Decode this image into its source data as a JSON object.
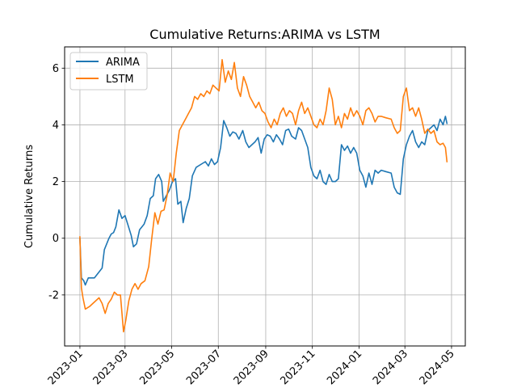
{
  "chart_data": {
    "type": "line",
    "title": "Cumulative Returns:ARIMA vs LSTM",
    "xlabel": "",
    "ylabel": "Cumulative Returns",
    "x_type": "date",
    "xlim": [
      "2022-12-12",
      "2024-05-19"
    ],
    "ylim": [
      -3.8,
      6.75
    ],
    "x_ticks": [
      "2023-01",
      "2023-03",
      "2023-05",
      "2023-07",
      "2023-09",
      "2023-11",
      "2024-01",
      "2024-03",
      "2024-05"
    ],
    "y_ticks": [
      -2,
      0,
      2,
      4,
      6
    ],
    "grid": true,
    "legend_position": "upper-left",
    "series": [
      {
        "name": "ARIMA",
        "color": "#1f77b4",
        "points": [
          [
            "2023-01-01",
            0.0
          ],
          [
            "2023-01-03",
            -1.4
          ],
          [
            "2023-01-06",
            -1.5
          ],
          [
            "2023-01-08",
            -1.65
          ],
          [
            "2023-01-12",
            -1.4
          ],
          [
            "2023-01-20",
            -1.4
          ],
          [
            "2023-01-30",
            -1.05
          ],
          [
            "2023-02-02",
            -0.4
          ],
          [
            "2023-02-08",
            0.0
          ],
          [
            "2023-02-11",
            0.15
          ],
          [
            "2023-02-14",
            0.2
          ],
          [
            "2023-02-17",
            0.4
          ],
          [
            "2023-02-21",
            1.0
          ],
          [
            "2023-02-25",
            0.7
          ],
          [
            "2023-03-01",
            0.8
          ],
          [
            "2023-03-05",
            0.45
          ],
          [
            "2023-03-09",
            0.1
          ],
          [
            "2023-03-12",
            -0.3
          ],
          [
            "2023-03-16",
            -0.2
          ],
          [
            "2023-03-20",
            0.3
          ],
          [
            "2023-03-26",
            0.5
          ],
          [
            "2023-03-30",
            0.8
          ],
          [
            "2023-04-03",
            1.4
          ],
          [
            "2023-04-07",
            1.5
          ],
          [
            "2023-04-10",
            2.1
          ],
          [
            "2023-04-14",
            2.25
          ],
          [
            "2023-04-18",
            2.0
          ],
          [
            "2023-04-20",
            1.3
          ],
          [
            "2023-04-24",
            1.5
          ],
          [
            "2023-04-28",
            1.7
          ],
          [
            "2023-05-02",
            2.0
          ],
          [
            "2023-05-06",
            2.1
          ],
          [
            "2023-05-09",
            1.2
          ],
          [
            "2023-05-13",
            1.3
          ],
          [
            "2023-05-16",
            0.55
          ],
          [
            "2023-05-20",
            1.05
          ],
          [
            "2023-05-24",
            1.4
          ],
          [
            "2023-05-28",
            2.2
          ],
          [
            "2023-06-02",
            2.5
          ],
          [
            "2023-06-08",
            2.6
          ],
          [
            "2023-06-14",
            2.7
          ],
          [
            "2023-06-18",
            2.55
          ],
          [
            "2023-06-22",
            2.8
          ],
          [
            "2023-06-26",
            2.6
          ],
          [
            "2023-06-30",
            2.7
          ],
          [
            "2023-07-04",
            3.2
          ],
          [
            "2023-07-08",
            4.15
          ],
          [
            "2023-07-12",
            3.9
          ],
          [
            "2023-07-16",
            3.6
          ],
          [
            "2023-07-20",
            3.75
          ],
          [
            "2023-07-24",
            3.7
          ],
          [
            "2023-07-28",
            3.5
          ],
          [
            "2023-08-02",
            3.8
          ],
          [
            "2023-08-06",
            3.4
          ],
          [
            "2023-08-10",
            3.2
          ],
          [
            "2023-08-14",
            3.3
          ],
          [
            "2023-08-18",
            3.4
          ],
          [
            "2023-08-22",
            3.55
          ],
          [
            "2023-08-26",
            3.0
          ],
          [
            "2023-08-30",
            3.5
          ],
          [
            "2023-09-03",
            3.65
          ],
          [
            "2023-09-07",
            3.6
          ],
          [
            "2023-09-11",
            3.4
          ],
          [
            "2023-09-15",
            3.65
          ],
          [
            "2023-09-19",
            3.5
          ],
          [
            "2023-09-23",
            3.3
          ],
          [
            "2023-09-27",
            3.8
          ],
          [
            "2023-10-01",
            3.85
          ],
          [
            "2023-10-05",
            3.6
          ],
          [
            "2023-10-10",
            3.5
          ],
          [
            "2023-10-14",
            3.9
          ],
          [
            "2023-10-18",
            3.8
          ],
          [
            "2023-10-22",
            3.5
          ],
          [
            "2023-10-26",
            3.2
          ],
          [
            "2023-10-30",
            2.5
          ],
          [
            "2023-11-03",
            2.2
          ],
          [
            "2023-11-07",
            2.1
          ],
          [
            "2023-11-11",
            2.4
          ],
          [
            "2023-11-15",
            2.0
          ],
          [
            "2023-11-19",
            1.9
          ],
          [
            "2023-11-23",
            2.25
          ],
          [
            "2023-11-27",
            2.0
          ],
          [
            "2023-12-01",
            2.0
          ],
          [
            "2023-12-05",
            2.1
          ],
          [
            "2023-12-09",
            3.3
          ],
          [
            "2023-12-13",
            3.1
          ],
          [
            "2023-12-17",
            3.25
          ],
          [
            "2023-12-21",
            3.0
          ],
          [
            "2023-12-25",
            3.2
          ],
          [
            "2023-12-29",
            3.0
          ],
          [
            "2024-01-02",
            2.4
          ],
          [
            "2024-01-06",
            2.2
          ],
          [
            "2024-01-10",
            1.8
          ],
          [
            "2024-01-14",
            2.3
          ],
          [
            "2024-01-18",
            1.9
          ],
          [
            "2024-01-22",
            2.4
          ],
          [
            "2024-01-26",
            2.3
          ],
          [
            "2024-01-30",
            2.4
          ],
          [
            "2024-02-05",
            2.35
          ],
          [
            "2024-02-12",
            2.3
          ],
          [
            "2024-02-16",
            1.8
          ],
          [
            "2024-02-20",
            1.6
          ],
          [
            "2024-02-24",
            1.55
          ],
          [
            "2024-02-28",
            2.8
          ],
          [
            "2024-03-03",
            3.3
          ],
          [
            "2024-03-07",
            3.6
          ],
          [
            "2024-03-11",
            3.8
          ],
          [
            "2024-03-15",
            3.4
          ],
          [
            "2024-03-19",
            3.2
          ],
          [
            "2024-03-23",
            3.4
          ],
          [
            "2024-03-27",
            3.3
          ],
          [
            "2024-03-31",
            3.8
          ],
          [
            "2024-04-04",
            3.9
          ],
          [
            "2024-04-08",
            4.0
          ],
          [
            "2024-04-12",
            3.8
          ],
          [
            "2024-04-16",
            4.2
          ],
          [
            "2024-04-20",
            4.0
          ],
          [
            "2024-04-23",
            4.3
          ],
          [
            "2024-04-25",
            4.05
          ]
        ]
      },
      {
        "name": "LSTM",
        "color": "#ff7f0e",
        "points": [
          [
            "2023-01-01",
            0.05
          ],
          [
            "2023-01-03",
            -1.75
          ],
          [
            "2023-01-05",
            -2.1
          ],
          [
            "2023-01-08",
            -2.5
          ],
          [
            "2023-01-14",
            -2.4
          ],
          [
            "2023-01-22",
            -2.2
          ],
          [
            "2023-01-26",
            -2.1
          ],
          [
            "2023-01-30",
            -2.3
          ],
          [
            "2023-02-03",
            -2.65
          ],
          [
            "2023-02-07",
            -2.3
          ],
          [
            "2023-02-11",
            -2.15
          ],
          [
            "2023-02-15",
            -1.9
          ],
          [
            "2023-02-19",
            -2.0
          ],
          [
            "2023-02-23",
            -2.0
          ],
          [
            "2023-02-27",
            -3.3
          ],
          [
            "2023-03-02",
            -2.9
          ],
          [
            "2023-03-06",
            -2.2
          ],
          [
            "2023-03-10",
            -1.8
          ],
          [
            "2023-03-14",
            -1.6
          ],
          [
            "2023-03-18",
            -1.8
          ],
          [
            "2023-03-22",
            -1.6
          ],
          [
            "2023-03-27",
            -1.5
          ],
          [
            "2023-04-01",
            -1.0
          ],
          [
            "2023-04-05",
            0.0
          ],
          [
            "2023-04-09",
            0.9
          ],
          [
            "2023-04-13",
            0.5
          ],
          [
            "2023-04-17",
            0.95
          ],
          [
            "2023-04-21",
            1.0
          ],
          [
            "2023-04-25",
            1.5
          ],
          [
            "2023-04-29",
            2.3
          ],
          [
            "2023-05-03",
            2.0
          ],
          [
            "2023-05-07",
            3.0
          ],
          [
            "2023-05-11",
            3.8
          ],
          [
            "2023-05-15",
            4.0
          ],
          [
            "2023-05-19",
            4.2
          ],
          [
            "2023-05-23",
            4.4
          ],
          [
            "2023-05-27",
            4.6
          ],
          [
            "2023-05-31",
            5.0
          ],
          [
            "2023-06-04",
            4.9
          ],
          [
            "2023-06-08",
            5.1
          ],
          [
            "2023-06-12",
            5.0
          ],
          [
            "2023-06-16",
            5.2
          ],
          [
            "2023-06-20",
            5.1
          ],
          [
            "2023-06-24",
            5.4
          ],
          [
            "2023-06-28",
            5.3
          ],
          [
            "2023-07-02",
            5.2
          ],
          [
            "2023-07-06",
            6.3
          ],
          [
            "2023-07-10",
            5.5
          ],
          [
            "2023-07-14",
            5.9
          ],
          [
            "2023-07-18",
            5.6
          ],
          [
            "2023-07-22",
            6.2
          ],
          [
            "2023-07-26",
            5.3
          ],
          [
            "2023-07-30",
            5.0
          ],
          [
            "2023-08-03",
            5.7
          ],
          [
            "2023-08-07",
            5.4
          ],
          [
            "2023-08-11",
            5.0
          ],
          [
            "2023-08-15",
            4.8
          ],
          [
            "2023-08-19",
            4.6
          ],
          [
            "2023-08-23",
            4.8
          ],
          [
            "2023-08-27",
            4.5
          ],
          [
            "2023-08-31",
            4.4
          ],
          [
            "2023-09-04",
            4.1
          ],
          [
            "2023-09-08",
            3.9
          ],
          [
            "2023-09-12",
            4.2
          ],
          [
            "2023-09-16",
            4.0
          ],
          [
            "2023-09-20",
            4.4
          ],
          [
            "2023-09-24",
            4.6
          ],
          [
            "2023-09-28",
            4.3
          ],
          [
            "2023-10-02",
            4.5
          ],
          [
            "2023-10-06",
            4.4
          ],
          [
            "2023-10-10",
            4.0
          ],
          [
            "2023-10-14",
            4.5
          ],
          [
            "2023-10-18",
            4.8
          ],
          [
            "2023-10-22",
            4.4
          ],
          [
            "2023-10-26",
            4.6
          ],
          [
            "2023-10-30",
            4.3
          ],
          [
            "2023-11-03",
            4.0
          ],
          [
            "2023-11-07",
            3.9
          ],
          [
            "2023-11-11",
            4.2
          ],
          [
            "2023-11-15",
            4.0
          ],
          [
            "2023-11-19",
            4.5
          ],
          [
            "2023-11-23",
            5.3
          ],
          [
            "2023-11-27",
            4.9
          ],
          [
            "2023-12-01",
            4.0
          ],
          [
            "2023-12-05",
            4.3
          ],
          [
            "2023-12-09",
            3.9
          ],
          [
            "2023-12-13",
            4.4
          ],
          [
            "2023-12-17",
            4.2
          ],
          [
            "2023-12-21",
            4.6
          ],
          [
            "2023-12-25",
            4.3
          ],
          [
            "2023-12-29",
            4.5
          ],
          [
            "2024-01-02",
            4.3
          ],
          [
            "2024-01-06",
            4.0
          ],
          [
            "2024-01-10",
            4.5
          ],
          [
            "2024-01-14",
            4.6
          ],
          [
            "2024-01-18",
            4.4
          ],
          [
            "2024-01-22",
            4.1
          ],
          [
            "2024-01-26",
            4.3
          ],
          [
            "2024-01-30",
            4.3
          ],
          [
            "2024-02-05",
            4.25
          ],
          [
            "2024-02-12",
            4.2
          ],
          [
            "2024-02-16",
            3.9
          ],
          [
            "2024-02-20",
            3.7
          ],
          [
            "2024-02-24",
            3.8
          ],
          [
            "2024-02-28",
            5.0
          ],
          [
            "2024-03-03",
            5.3
          ],
          [
            "2024-03-07",
            4.5
          ],
          [
            "2024-03-11",
            4.6
          ],
          [
            "2024-03-15",
            4.3
          ],
          [
            "2024-03-19",
            4.6
          ],
          [
            "2024-03-23",
            4.2
          ],
          [
            "2024-03-27",
            3.7
          ],
          [
            "2024-03-31",
            3.85
          ],
          [
            "2024-04-04",
            3.7
          ],
          [
            "2024-04-08",
            3.8
          ],
          [
            "2024-04-12",
            3.4
          ],
          [
            "2024-04-16",
            3.3
          ],
          [
            "2024-04-20",
            3.35
          ],
          [
            "2024-04-23",
            3.2
          ],
          [
            "2024-04-25",
            2.7
          ]
        ]
      }
    ]
  }
}
